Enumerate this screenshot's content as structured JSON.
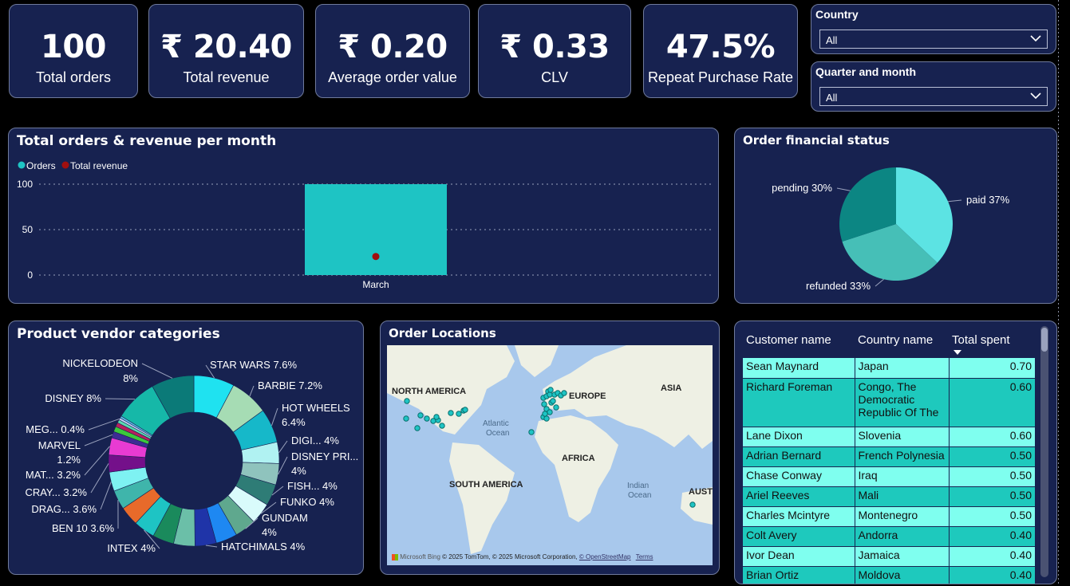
{
  "kpis": [
    {
      "value": "100",
      "label": "Total orders"
    },
    {
      "value": "₹ 20.40",
      "label": "Total revenue"
    },
    {
      "value": "₹ 0.20",
      "label": "Average order value"
    },
    {
      "value": "₹ 0.33",
      "label": "CLV"
    },
    {
      "value": "47.5%",
      "label": "Repeat Purchase Rate"
    }
  ],
  "slicers": {
    "country": {
      "title": "Country",
      "value": "All"
    },
    "quarter_month": {
      "title": "Quarter and month",
      "value": "All"
    }
  },
  "orders_chart": {
    "title": "Total orders & revenue per month",
    "legend": [
      "Orders",
      "Total revenue"
    ],
    "colors": {
      "orders": "#1ec4c4",
      "revenue": "#a00f0f"
    }
  },
  "financial_chart": {
    "title": "Order financial status"
  },
  "vendor_chart": {
    "title": "Product vendor categories"
  },
  "map": {
    "title": "Order Locations",
    "labels": {
      "north_america": "NORTH AMERICA",
      "europe": "EUROPE",
      "asia": "ASIA",
      "africa": "AFRICA",
      "south_america": "SOUTH AMERICA",
      "atlantic": "Atlantic",
      "ocean1": "Ocean",
      "indian": "Indian",
      "ocean2": "Ocean",
      "australia": "AUST"
    },
    "bing": "Microsoft Bing",
    "attribution": "© 2025 TomTom, © 2025 Microsoft Corporation,",
    "osm": "© OpenStreetMap",
    "terms": "Terms"
  },
  "customers": {
    "headers": {
      "name": "Customer name",
      "country": "Country name",
      "spent": "Total spent"
    },
    "rows": [
      {
        "name": "Sean Maynard",
        "country": "Japan",
        "spent": "0.70"
      },
      {
        "name": "Richard Foreman",
        "country": "Congo, The Democratic Republic Of The",
        "spent": "0.60"
      },
      {
        "name": "Lane Dixon",
        "country": "Slovenia",
        "spent": "0.60"
      },
      {
        "name": "Adrian Bernard",
        "country": "French Polynesia",
        "spent": "0.50"
      },
      {
        "name": "Chase Conway",
        "country": "Iraq",
        "spent": "0.50"
      },
      {
        "name": "Ariel Reeves",
        "country": "Mali",
        "spent": "0.50"
      },
      {
        "name": "Charles Mcintyre",
        "country": "Montenegro",
        "spent": "0.50"
      },
      {
        "name": "Colt Avery",
        "country": "Andorra",
        "spent": "0.40"
      },
      {
        "name": "Ivor Dean",
        "country": "Jamaica",
        "spent": "0.40"
      },
      {
        "name": "Brian Ortiz",
        "country": "Moldova",
        "spent": "0.40"
      }
    ]
  },
  "chart_data": [
    {
      "type": "bar",
      "title": "Total orders & revenue per month",
      "categories": [
        "March"
      ],
      "series": [
        {
          "name": "Orders",
          "values": [
            100
          ],
          "color": "#1ec4c4"
        },
        {
          "name": "Total revenue",
          "values": [
            20.4
          ],
          "color": "#a00f0f"
        }
      ],
      "yticks": [
        "100",
        "50",
        "0"
      ],
      "ylim": [
        0,
        100
      ],
      "grid": true,
      "legend_position": "top-left"
    },
    {
      "type": "pie",
      "title": "Order financial status",
      "slices": [
        {
          "label": "paid",
          "pct": "37%",
          "value": 37,
          "color": "#5ce3e3"
        },
        {
          "label": "refunded",
          "pct": "33%",
          "value": 33,
          "color": "#46bfb7"
        },
        {
          "label": "pending",
          "pct": "30%",
          "value": 30,
          "color": "#0c8683"
        }
      ]
    },
    {
      "type": "pie",
      "title": "Product vendor categories",
      "slices": [
        {
          "name": "STAR WARS",
          "pct": "7.6%",
          "value": 7.6,
          "color": "#1fe2f0"
        },
        {
          "name": "BARBIE",
          "pct": "7.2%",
          "value": 7.2,
          "color": "#a6dcb4"
        },
        {
          "name": "HOT WHEELS",
          "pct": "6.4%",
          "value": 6.4,
          "color": "#16b8c9"
        },
        {
          "name": "DIGI...",
          "pct": "4%",
          "value": 4,
          "color": "#b0f2f2"
        },
        {
          "name": "DISNEY PRI...",
          "pct": "4%",
          "value": 4,
          "color": "#8fc3bd"
        },
        {
          "name": "FISH...",
          "pct": "4%",
          "value": 4,
          "color": "#2e7c76"
        },
        {
          "name": "FUNKO",
          "pct": "4%",
          "value": 4,
          "color": "#d9fbfb"
        },
        {
          "name": "GUNDAM",
          "pct": "4%",
          "value": 4,
          "color": "#5fa88e"
        },
        {
          "name": "",
          "pct": "",
          "value": 4,
          "color": "#1e88f2"
        },
        {
          "name": "HATCHIMALS",
          "pct": "4%",
          "value": 4,
          "color": "#1f34a8"
        },
        {
          "name": "",
          "pct": "",
          "value": 4,
          "color": "#6bbfa8"
        },
        {
          "name": "",
          "pct": "",
          "value": 4,
          "color": "#1a8a5c"
        },
        {
          "name": "INTEX",
          "pct": "4%",
          "value": 4,
          "color": "#1ec4c4"
        },
        {
          "name": "",
          "pct": "",
          "value": 3.6,
          "color": "#e86a2a"
        },
        {
          "name": "BEN 10",
          "pct": "3.6%",
          "value": 3.6,
          "color": "#3fb5ab"
        },
        {
          "name": "DRAG...",
          "pct": "3.6%",
          "value": 3.6,
          "color": "#7ef2f2"
        },
        {
          "name": "CRAY...",
          "pct": "3.2%",
          "value": 3.2,
          "color": "#74108a"
        },
        {
          "name": "MAT...",
          "pct": "3.2%",
          "value": 3.2,
          "color": "#e83bd2"
        },
        {
          "name": "MARVEL",
          "pct": "1.2%",
          "value": 1.2,
          "color": "#3d2c94"
        },
        {
          "name": "",
          "pct": "",
          "value": 1.0,
          "color": "#3cc83c"
        },
        {
          "name": "",
          "pct": "",
          "value": 0.8,
          "color": "#b71f5e"
        },
        {
          "name": "",
          "pct": "",
          "value": 0.6,
          "color": "#5bd9b0"
        },
        {
          "name": "MEG...",
          "pct": "0.4%",
          "value": 0.4,
          "color": "#c9d3ff"
        },
        {
          "name": "",
          "pct": "",
          "value": 0.4,
          "color": "#5bbde8"
        },
        {
          "name": "DISNEY",
          "pct": "8%",
          "value": 8,
          "color": "#16b8a8"
        },
        {
          "name": "NICKELODEON",
          "pct": "8%",
          "value": 8,
          "color": "#0b7a78"
        }
      ]
    }
  ]
}
